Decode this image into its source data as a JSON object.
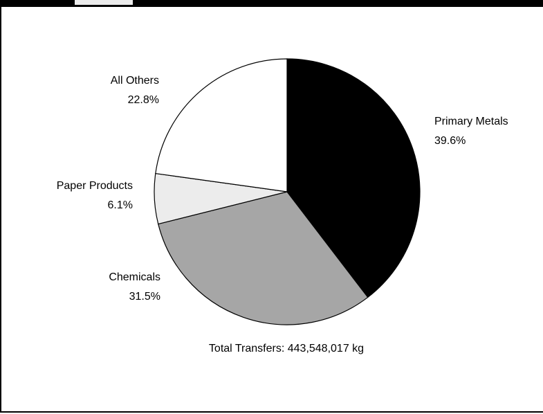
{
  "chart_data": {
    "type": "pie",
    "slices": [
      {
        "label": "Primary Metals",
        "value": 39.6,
        "value_label": "39.6%",
        "color": "#000000"
      },
      {
        "label": "Chemicals",
        "value": 31.5,
        "value_label": "31.5%",
        "color": "#a6a6a6"
      },
      {
        "label": "Paper Products",
        "value": 6.1,
        "value_label": "6.1%",
        "color": "#ececec"
      },
      {
        "label": "All Others",
        "value": 22.8,
        "value_label": "22.8%",
        "color": "#ffffff"
      }
    ],
    "caption": "Total Transfers: 443,548,017 kg"
  }
}
